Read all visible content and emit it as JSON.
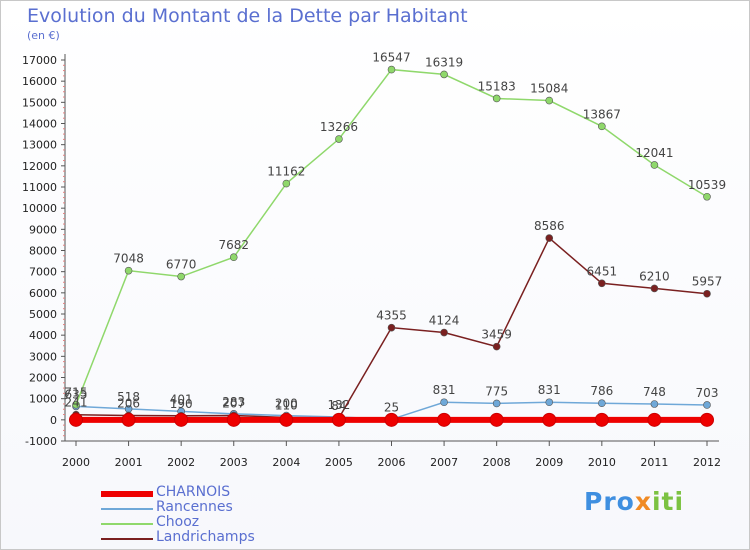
{
  "chart_data": {
    "type": "line",
    "title": "Evolution du Montant de la Dette par Habitant",
    "subtitle": "(en €)",
    "x": [
      "2000",
      "2001",
      "2002",
      "2003",
      "2004",
      "2005",
      "2006",
      "2007",
      "2008",
      "2009",
      "2010",
      "2011",
      "2012"
    ],
    "ylim": [
      -1000,
      17000
    ],
    "yticks": [
      -1000,
      0,
      1000,
      2000,
      3000,
      4000,
      5000,
      6000,
      7000,
      8000,
      9000,
      10000,
      11000,
      12000,
      13000,
      14000,
      15000,
      16000,
      17000
    ],
    "grid": false,
    "legend_position": "bottom-left",
    "series": [
      {
        "name": "CHARNOIS",
        "color": "#ee0000",
        "values": [
          0,
          0,
          0,
          0,
          0,
          0,
          0,
          0,
          0,
          0,
          0,
          0,
          0
        ]
      },
      {
        "name": "Rancennes",
        "color": "#6fa8d8",
        "values": [
          635,
          518,
          401,
          283,
          200,
          132,
          25,
          831,
          775,
          831,
          786,
          748,
          703
        ]
      },
      {
        "name": "Chooz",
        "color": "#8fd86b",
        "values": [
          715,
          7048,
          6770,
          7682,
          11162,
          13266,
          16547,
          16319,
          15183,
          15084,
          13867,
          12041,
          10539
        ]
      },
      {
        "name": "Landrichamps",
        "color": "#7a2020",
        "values": [
          241,
          206,
          190,
          207,
          110,
          84,
          4355,
          4124,
          3459,
          8586,
          6451,
          6210,
          5957
        ]
      }
    ]
  },
  "logo": {
    "p1": "Pro",
    "p2": "x",
    "p3": "iti"
  }
}
